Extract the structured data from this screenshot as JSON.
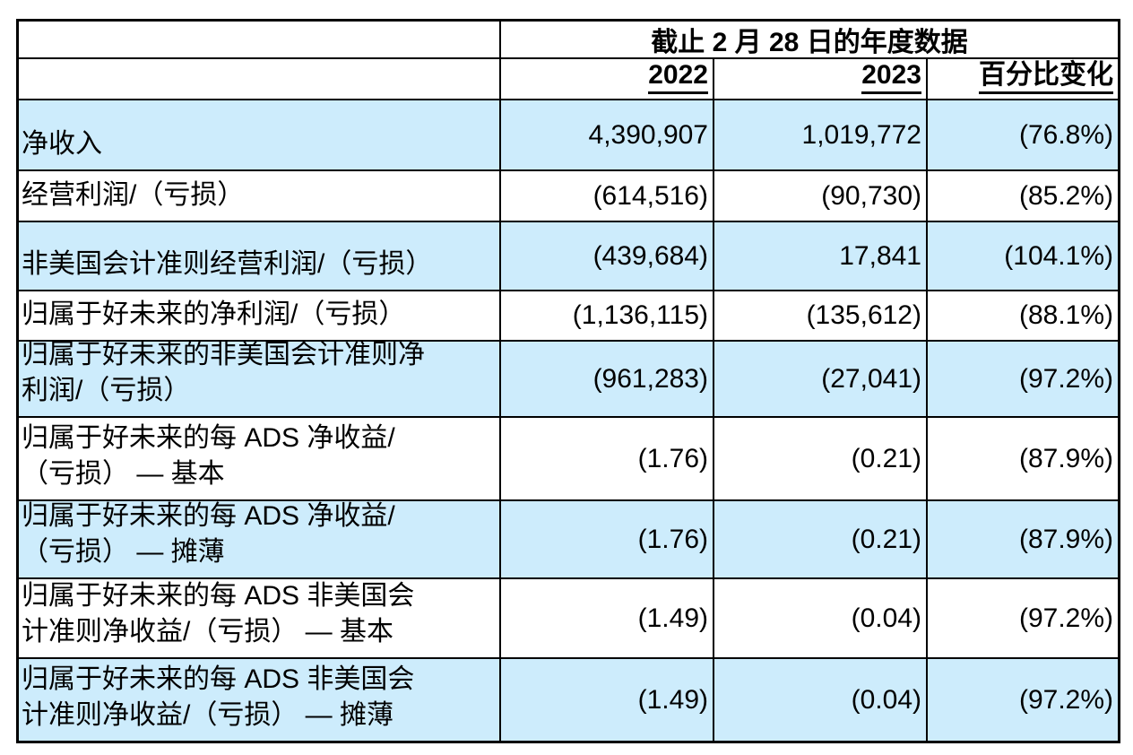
{
  "header": {
    "title": "截止 2 月 28 日的年度数据",
    "columns": [
      "2022",
      "2023",
      "百分比变化"
    ]
  },
  "table": {
    "rows": [
      {
        "label_lines": [
          "净收入"
        ],
        "values": [
          "4,390,907",
          "1,019,772",
          "(76.8%)"
        ]
      },
      {
        "label_lines": [
          "经营利润/（亏损）"
        ],
        "values": [
          "(614,516)",
          "(90,730)",
          "(85.2%)"
        ]
      },
      {
        "label_lines": [
          "非美国会计准则经营利润/（亏损）"
        ],
        "values": [
          "(439,684)",
          "17,841",
          "(104.1%)"
        ]
      },
      {
        "label_lines": [
          "归属于好未来的净利润/（亏损）"
        ],
        "values": [
          "(1,136,115)",
          "(135,612)",
          "(88.1%)"
        ]
      },
      {
        "label_lines": [
          "归属于好未来的非美国会计准则净",
          "利润/（亏损）"
        ],
        "values": [
          "(961,283)",
          "(27,041)",
          "(97.2%)"
        ]
      },
      {
        "label_lines": [
          "归属于好未来的每 ADS 净收益/",
          "（亏损） — 基本"
        ],
        "values": [
          "(1.76)",
          "(0.21)",
          "(87.9%)"
        ]
      },
      {
        "label_lines": [
          "归属于好未来的每 ADS 净收益/",
          "（亏损） — 摊薄"
        ],
        "values": [
          "(1.76)",
          "(0.21)",
          "(87.9%)"
        ]
      },
      {
        "label_lines": [
          "归属于好未来的每 ADS 非美国会",
          "计准则净收益/（亏损） — 基本"
        ],
        "values": [
          "(1.49)",
          "(0.04)",
          "(97.2%)"
        ]
      },
      {
        "label_lines": [
          "归属于好未来的每 ADS 非美国会",
          "计准则净收益/（亏损） — 摊薄"
        ],
        "values": [
          "(1.49)",
          "(0.04)",
          "(97.2%)"
        ]
      }
    ]
  },
  "colors": {
    "row_highlight": "#cdecfc",
    "border": "#000000",
    "text": "#000000",
    "background": "#ffffff"
  }
}
